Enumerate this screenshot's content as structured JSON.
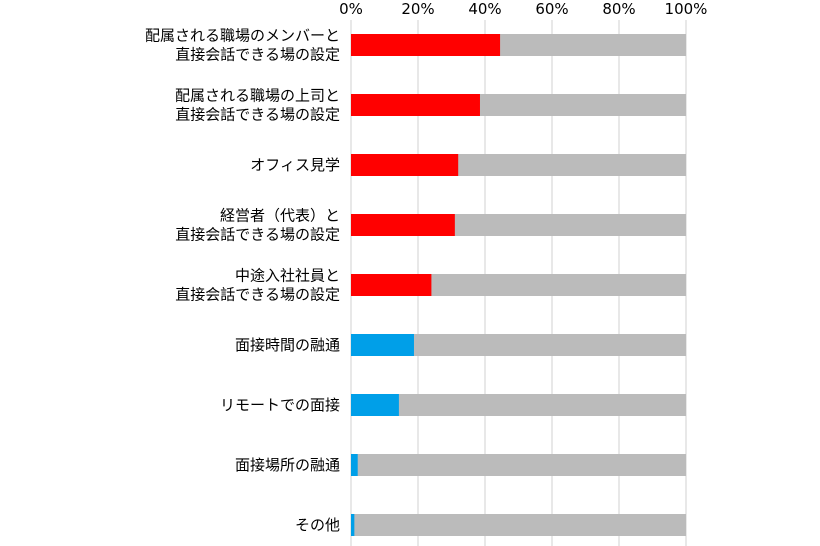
{
  "chart_data": {
    "type": "bar",
    "orientation": "horizontal",
    "stacked": true,
    "title": "",
    "xlabel": "",
    "ylabel": "",
    "xlim": [
      0,
      100
    ],
    "x_ticks": [
      "0%",
      "20%",
      "40%",
      "60%",
      "80%",
      "100%"
    ],
    "x_tick_values": [
      0,
      20,
      40,
      60,
      80,
      100
    ],
    "x_axis_position": "top",
    "grid": true,
    "legend": "none",
    "categories": [
      "配属される職場のメンバーと\n直接会話できる場の設定",
      "配属される職場の上司と\n直接会話できる場の設定",
      "オフィス見学",
      "経営者（代表）と\n直接会話できる場の設定",
      "中途入社社員と\n直接会話できる場の設定",
      "面接時間の融通",
      "リモートでの面接",
      "面接場所の融通",
      "その他"
    ],
    "values": [
      44.5,
      38.5,
      32.0,
      31.0,
      24.0,
      18.8,
      14.3,
      2.0,
      1.0
    ],
    "bar_colors": [
      "#ff0000",
      "#ff0000",
      "#ff0000",
      "#ff0000",
      "#ff0000",
      "#009fe8",
      "#009fe8",
      "#009fe8",
      "#009fe8"
    ],
    "remainder_color": "#bbbbbb",
    "grid_color": "#d0d0d0"
  }
}
